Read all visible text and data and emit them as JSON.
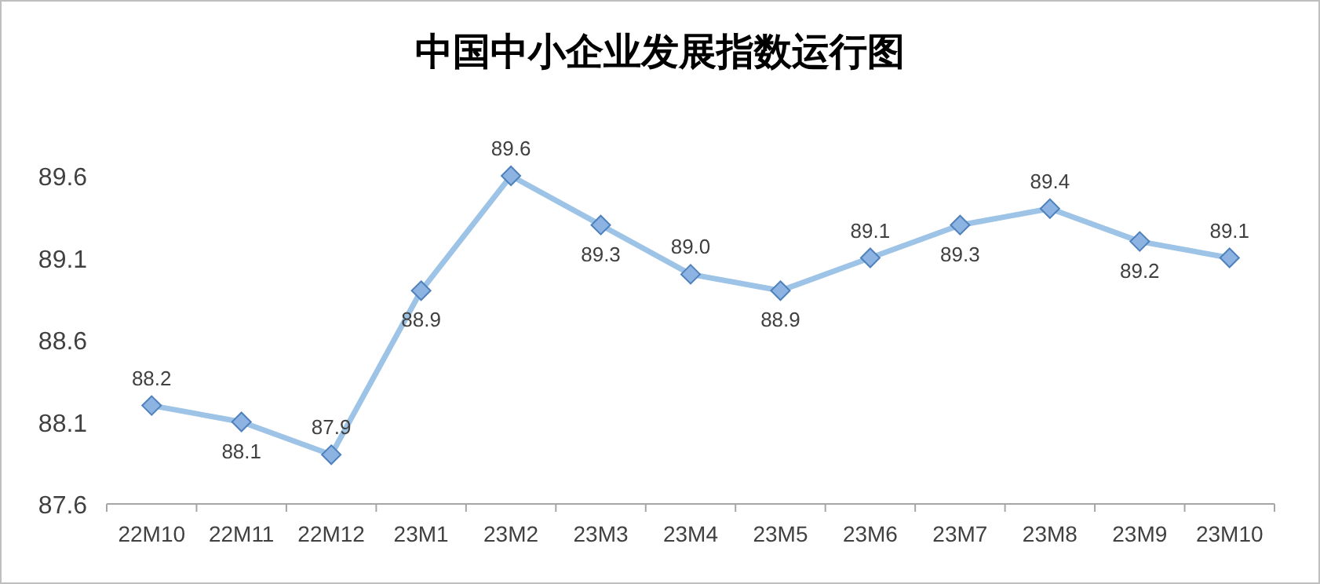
{
  "chart_data": {
    "type": "line",
    "title": "中国中小企业发展指数运行图",
    "categories": [
      "22M10",
      "22M11",
      "22M12",
      "23M1",
      "23M2",
      "23M3",
      "23M4",
      "23M5",
      "23M6",
      "23M7",
      "23M8",
      "23M9",
      "23M10"
    ],
    "series": [
      {
        "color": "#9dc3e6",
        "values": [
          88.2,
          88.1,
          87.9,
          88.9,
          89.6,
          89.3,
          89.0,
          88.9,
          89.1,
          89.3,
          89.4,
          89.2,
          89.1
        ],
        "value_labels": [
          "88.2",
          "88.1",
          "87.9",
          "88.9",
          "89.6",
          "89.3",
          "89.0",
          "88.9",
          "89.1",
          "89.3",
          "89.4",
          "89.2",
          "89.1"
        ]
      }
    ],
    "ylim": [
      87.6,
      89.6
    ],
    "yticks": [
      87.6,
      88.1,
      88.6,
      89.1,
      89.6
    ],
    "marker": "diamond",
    "grid": false
  }
}
